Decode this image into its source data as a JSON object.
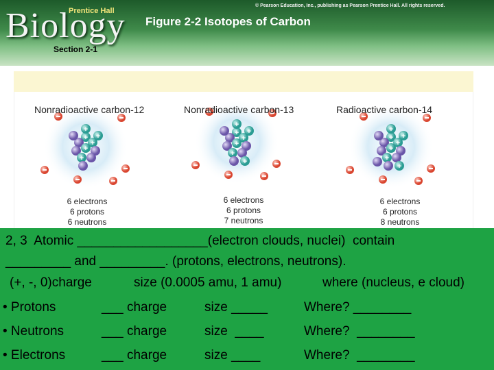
{
  "header": {
    "brand": "Biology",
    "publisher": "Prentice Hall",
    "copyright": "© Pearson Education, Inc., publishing as Pearson Prentice Hall. All rights reserved.",
    "title": "Figure 2-2 Isotopes of Carbon",
    "section": "Section 2-1"
  },
  "figure": {
    "atoms": [
      {
        "label": "Nonradioactive carbon-12",
        "composition": [
          "6 electrons",
          "6 protons",
          "6 neutrons"
        ]
      },
      {
        "label": "Nonradioactive carbon-13",
        "composition": [
          "6 electrons",
          "6 protons",
          "7 neutrons"
        ]
      },
      {
        "label": "Radioactive carbon-14",
        "composition": [
          "6 electrons",
          "6 protons",
          "8 neutrons"
        ]
      }
    ]
  },
  "notes": {
    "lines": [
      "2, 3  Atomic __________________(electron clouds, nuclei)  contain",
      "_________ and _________. (protons, electrons, neutrons)."
    ],
    "legend": [
      "(+, -, 0)charge",
      "size (0.0005 amu, 1 amu)",
      "where (nucleus, e cloud)"
    ],
    "rows": [
      [
        "• Protons",
        "___ charge",
        "size _____",
        "Where? ________"
      ],
      [
        "• Neutrons",
        "___ charge",
        "size  ____",
        "Where?  ________"
      ],
      [
        "• Electrons",
        "___ charge",
        "size ____",
        "Where?  ________"
      ]
    ]
  }
}
